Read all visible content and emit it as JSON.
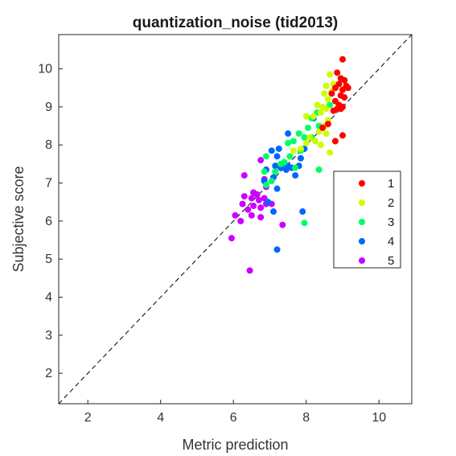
{
  "chart_data": {
    "type": "scatter",
    "title": "quantization_noise (tid2013)",
    "xlabel": "Metric prediction",
    "ylabel": "Subjective score",
    "xlim": [
      1.2,
      10.9
    ],
    "ylim": [
      1.2,
      10.9
    ],
    "xticks": [
      2,
      4,
      6,
      8,
      10
    ],
    "yticks": [
      2,
      3,
      4,
      5,
      6,
      7,
      8,
      9,
      10
    ],
    "grid": false,
    "legend_position": "right",
    "reference_line": "identity",
    "series": [
      {
        "name": "1",
        "color": "#ff0000",
        "points": [
          [
            9.0,
            10.25
          ],
          [
            8.85,
            9.9
          ],
          [
            8.95,
            9.75
          ],
          [
            9.05,
            9.7
          ],
          [
            8.9,
            9.6
          ],
          [
            9.1,
            9.55
          ],
          [
            8.8,
            9.5
          ],
          [
            9.15,
            9.5
          ],
          [
            9.0,
            9.45
          ],
          [
            8.7,
            9.35
          ],
          [
            8.95,
            9.3
          ],
          [
            9.05,
            9.25
          ],
          [
            8.8,
            9.15
          ],
          [
            8.9,
            9.05
          ],
          [
            9.0,
            9.0
          ],
          [
            8.85,
            8.95
          ],
          [
            8.75,
            8.9
          ],
          [
            9.0,
            8.25
          ],
          [
            8.8,
            8.1
          ],
          [
            8.45,
            8.45
          ],
          [
            8.6,
            8.55
          ],
          [
            8.95,
            8.95
          ]
        ]
      },
      {
        "name": "2",
        "color": "#ccff00",
        "points": [
          [
            8.65,
            9.85
          ],
          [
            8.75,
            9.6
          ],
          [
            8.55,
            9.55
          ],
          [
            8.7,
            9.4
          ],
          [
            8.5,
            9.35
          ],
          [
            8.6,
            9.2
          ],
          [
            8.3,
            9.05
          ],
          [
            8.45,
            9.0
          ],
          [
            8.55,
            8.95
          ],
          [
            8.4,
            8.85
          ],
          [
            8.2,
            8.75
          ],
          [
            8.0,
            8.75
          ],
          [
            8.6,
            8.65
          ],
          [
            8.5,
            8.5
          ],
          [
            8.35,
            8.35
          ],
          [
            8.55,
            8.3
          ],
          [
            8.1,
            8.2
          ],
          [
            8.25,
            8.1
          ],
          [
            8.0,
            8.05
          ],
          [
            7.85,
            7.9
          ],
          [
            8.4,
            8.0
          ],
          [
            8.65,
            7.8
          ],
          [
            7.65,
            7.85
          ]
        ]
      },
      {
        "name": "3",
        "color": "#00ff66",
        "points": [
          [
            8.65,
            9.05
          ],
          [
            8.3,
            8.85
          ],
          [
            8.15,
            8.7
          ],
          [
            8.35,
            8.5
          ],
          [
            8.05,
            8.45
          ],
          [
            7.8,
            8.3
          ],
          [
            8.15,
            8.2
          ],
          [
            7.95,
            8.2
          ],
          [
            7.65,
            8.1
          ],
          [
            7.5,
            8.05
          ],
          [
            7.85,
            7.85
          ],
          [
            7.55,
            7.7
          ],
          [
            6.9,
            7.7
          ],
          [
            7.4,
            7.55
          ],
          [
            7.7,
            7.4
          ],
          [
            8.35,
            7.35
          ],
          [
            7.15,
            7.3
          ],
          [
            6.85,
            7.3
          ],
          [
            6.9,
            6.95
          ],
          [
            7.05,
            7.05
          ],
          [
            7.95,
            5.95
          ],
          [
            7.3,
            7.5
          ]
        ]
      },
      {
        "name": "4",
        "color": "#0066ff",
        "points": [
          [
            8.2,
            8.7
          ],
          [
            7.5,
            8.3
          ],
          [
            7.25,
            7.9
          ],
          [
            7.95,
            7.9
          ],
          [
            7.05,
            7.85
          ],
          [
            7.85,
            7.65
          ],
          [
            7.2,
            7.7
          ],
          [
            7.5,
            7.45
          ],
          [
            7.35,
            7.5
          ],
          [
            7.15,
            7.45
          ],
          [
            7.45,
            7.35
          ],
          [
            7.6,
            7.4
          ],
          [
            7.8,
            7.45
          ],
          [
            7.3,
            7.4
          ],
          [
            6.9,
            7.35
          ],
          [
            7.7,
            7.2
          ],
          [
            6.85,
            7.05
          ],
          [
            7.1,
            7.15
          ],
          [
            7.2,
            6.85
          ],
          [
            6.95,
            6.5
          ],
          [
            7.1,
            6.25
          ],
          [
            7.9,
            6.25
          ],
          [
            7.2,
            5.25
          ]
        ]
      },
      {
        "name": "5",
        "color": "#cc00ff",
        "points": [
          [
            6.75,
            7.6
          ],
          [
            6.3,
            7.2
          ],
          [
            6.85,
            7.1
          ],
          [
            6.9,
            6.9
          ],
          [
            6.55,
            6.75
          ],
          [
            6.3,
            6.65
          ],
          [
            6.5,
            6.6
          ],
          [
            6.65,
            6.7
          ],
          [
            6.7,
            6.55
          ],
          [
            6.85,
            6.6
          ],
          [
            6.25,
            6.45
          ],
          [
            6.55,
            6.4
          ],
          [
            6.4,
            6.3
          ],
          [
            6.75,
            6.35
          ],
          [
            6.9,
            6.45
          ],
          [
            7.05,
            6.45
          ],
          [
            6.05,
            6.15
          ],
          [
            6.2,
            6.0
          ],
          [
            6.5,
            6.15
          ],
          [
            6.75,
            6.1
          ],
          [
            7.35,
            5.9
          ],
          [
            5.95,
            5.55
          ],
          [
            6.45,
            4.7
          ]
        ]
      }
    ]
  }
}
